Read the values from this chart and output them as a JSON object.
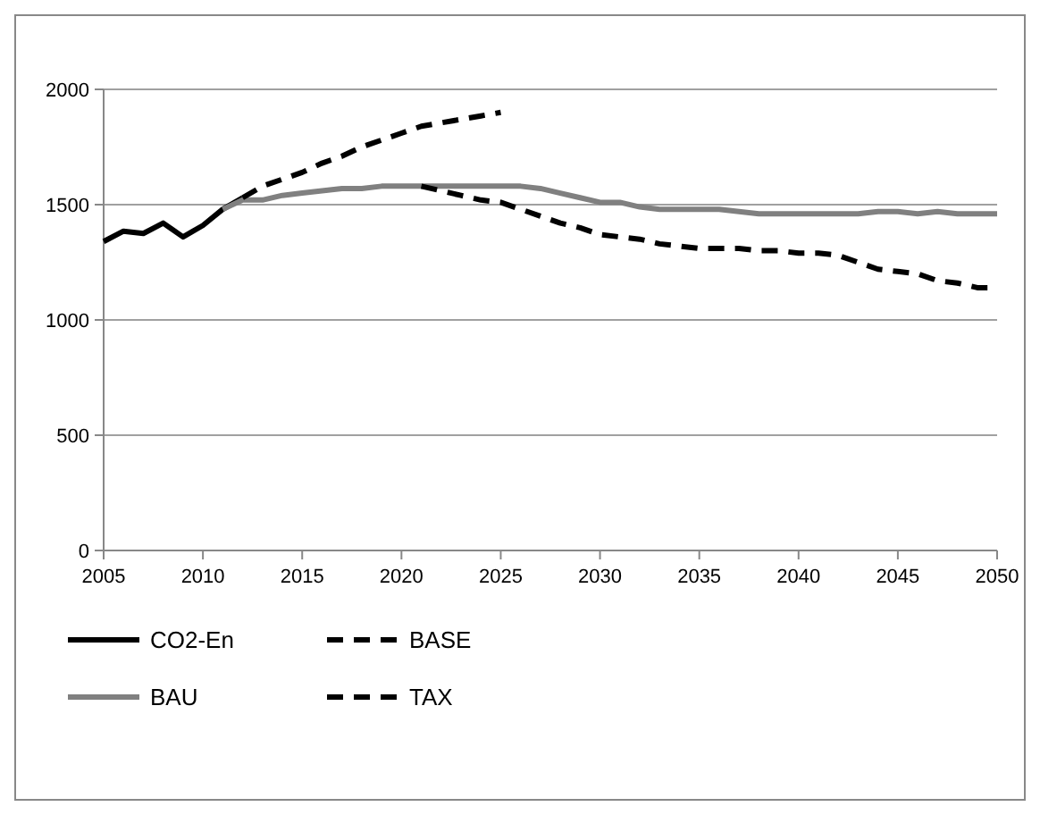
{
  "chart_data": {
    "type": "line",
    "x": [
      2005,
      2006,
      2007,
      2008,
      2009,
      2010,
      2011,
      2012
    ],
    "xlim": [
      2005,
      2050
    ],
    "xticks": [
      2005,
      2010,
      2015,
      2020,
      2025,
      2030,
      2035,
      2040,
      2045,
      2050
    ],
    "ylim": [
      0,
      2000
    ],
    "yticks": [
      0,
      500,
      1000,
      1500,
      2000
    ],
    "grid": "y",
    "legend": "bottom left",
    "series": [
      {
        "name": "CO2-En",
        "color": "#000000",
        "line_style": "solid",
        "values": [
          1340,
          1385,
          1375,
          1420,
          1360,
          1410,
          1480,
          1530
        ]
      },
      {
        "name": "BAU",
        "color": "#808080",
        "line_style": "solid",
        "x": [
          2011,
          2012,
          2013,
          2014,
          2015,
          2016,
          2017,
          2018,
          2019,
          2020,
          2021,
          2022,
          2023,
          2024,
          2025,
          2026,
          2027,
          2028,
          2029,
          2030,
          2031,
          2032,
          2033,
          2034,
          2035,
          2036,
          2037,
          2038,
          2039,
          2040,
          2041,
          2042,
          2043,
          2044,
          2045,
          2046,
          2047,
          2048,
          2049,
          2050
        ],
        "values": [
          1480,
          1520,
          1520,
          1540,
          1550,
          1560,
          1570,
          1570,
          1580,
          1580,
          1580,
          1580,
          1580,
          1580,
          1580,
          1580,
          1570,
          1550,
          1530,
          1510,
          1510,
          1490,
          1480,
          1480,
          1480,
          1480,
          1470,
          1460,
          1460,
          1460,
          1460,
          1460,
          1460,
          1470,
          1470,
          1460,
          1470,
          1460,
          1460,
          1460
        ]
      },
      {
        "name": "BASE",
        "color": "#000000",
        "line_style": "dashed",
        "x": [
          2012,
          2013,
          2014,
          2015,
          2016,
          2017,
          2018,
          2019,
          2020,
          2021,
          2022,
          2023,
          2024,
          2025
        ],
        "values": [
          1530,
          1580,
          1610,
          1640,
          1680,
          1710,
          1750,
          1780,
          1810,
          1840,
          1855,
          1870,
          1885,
          1900
        ]
      },
      {
        "name": "TAX",
        "color": "#000000",
        "line_style": "dashed",
        "x": [
          2021,
          2022,
          2023,
          2024,
          2025,
          2026,
          2027,
          2028,
          2029,
          2030,
          2031,
          2032,
          2033,
          2034,
          2035,
          2036,
          2037,
          2038,
          2039,
          2040,
          2041,
          2042,
          2043,
          2044,
          2045,
          2046,
          2047,
          2048,
          2049,
          2050
        ],
        "values": [
          1580,
          1560,
          1540,
          1520,
          1510,
          1480,
          1450,
          1420,
          1400,
          1370,
          1360,
          1350,
          1330,
          1320,
          1310,
          1310,
          1310,
          1300,
          1300,
          1290,
          1290,
          1280,
          1250,
          1220,
          1210,
          1200,
          1170,
          1160,
          1140,
          1140
        ]
      }
    ]
  }
}
